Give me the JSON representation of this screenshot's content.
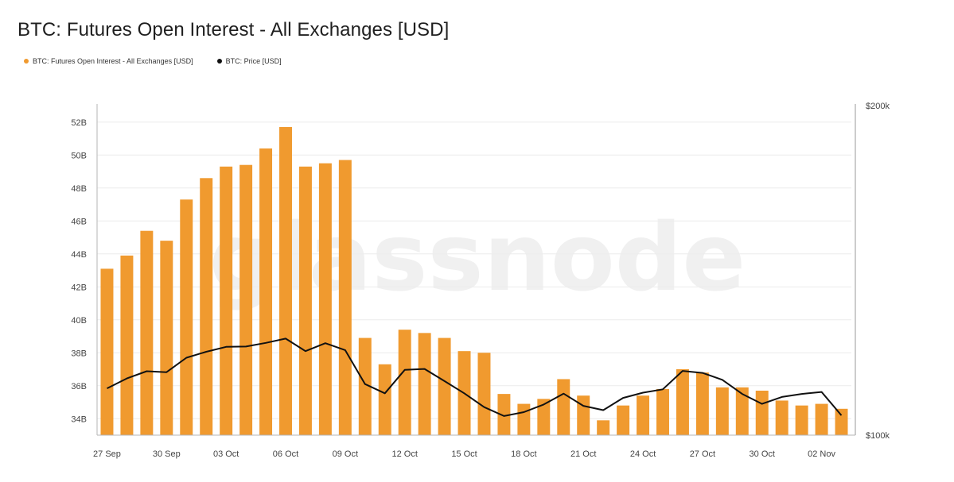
{
  "header": {
    "title": "BTC: Futures Open Interest - All Exchanges [USD]"
  },
  "legend": [
    {
      "label": "BTC: Futures Open Interest - All Exchanges [USD]",
      "color": "#f09a2f"
    },
    {
      "label": "BTC: Price [USD]",
      "color": "#111111"
    }
  ],
  "watermark": "glassnode",
  "chart_data": {
    "type": "bar",
    "title": "BTC: Futures Open Interest - All Exchanges [USD]",
    "xlabel": "",
    "ylabel": "",
    "x_ticks": [
      "27 Sep",
      "30 Sep",
      "03 Oct",
      "06 Oct",
      "09 Oct",
      "12 Oct",
      "15 Oct",
      "18 Oct",
      "21 Oct",
      "24 Oct",
      "27 Oct",
      "30 Oct",
      "02 Nov"
    ],
    "y_left": {
      "min": 33,
      "max": 53,
      "ticks": [
        34,
        36,
        38,
        40,
        42,
        44,
        46,
        48,
        50,
        52
      ],
      "tick_labels": [
        "34B",
        "36B",
        "38B",
        "40B",
        "42B",
        "44B",
        "46B",
        "48B",
        "50B",
        "52B"
      ]
    },
    "y_right": {
      "min": 100,
      "max": 200,
      "tick_labels": [
        "$100k",
        "$200k"
      ]
    },
    "categories": [
      "27 Sep",
      "28 Sep",
      "29 Sep",
      "30 Sep",
      "01 Oct",
      "02 Oct",
      "03 Oct",
      "04 Oct",
      "05 Oct",
      "06 Oct",
      "07 Oct",
      "08 Oct",
      "09 Oct",
      "10 Oct",
      "11 Oct",
      "12 Oct",
      "13 Oct",
      "14 Oct",
      "15 Oct",
      "16 Oct",
      "17 Oct",
      "18 Oct",
      "19 Oct",
      "20 Oct",
      "21 Oct",
      "22 Oct",
      "23 Oct",
      "24 Oct",
      "25 Oct",
      "26 Oct",
      "27 Oct",
      "28 Oct",
      "29 Oct",
      "30 Oct",
      "31 Oct",
      "01 Nov",
      "02 Nov",
      "03 Nov"
    ],
    "series": [
      {
        "name": "BTC: Futures Open Interest - All Exchanges [USD]",
        "type": "bar",
        "axis": "left",
        "unit": "B",
        "color": "#f09a2f",
        "values": [
          43.1,
          43.9,
          45.4,
          44.8,
          47.3,
          48.6,
          49.3,
          49.4,
          50.4,
          51.7,
          49.3,
          49.5,
          49.7,
          38.9,
          37.3,
          39.4,
          39.2,
          38.9,
          38.1,
          38.0,
          35.5,
          34.9,
          35.2,
          36.4,
          35.4,
          33.9,
          34.8,
          35.4,
          35.8,
          37.0,
          36.8,
          35.9,
          35.9,
          35.7,
          35.1,
          34.8,
          34.9,
          34.6
        ]
      },
      {
        "name": "BTC: Price [USD]",
        "type": "line",
        "axis": "right",
        "unit": "k",
        "color": "#111111",
        "values": [
          114.2,
          117.2,
          119.4,
          119.1,
          123.5,
          125.3,
          126.8,
          126.9,
          128.0,
          129.3,
          125.5,
          127.9,
          125.8,
          115.5,
          112.7,
          119.8,
          120.1,
          116.4,
          112.7,
          108.5,
          105.8,
          107.0,
          109.3,
          112.6,
          108.9,
          107.6,
          111.3,
          112.9,
          113.9,
          119.5,
          118.9,
          116.8,
          112.5,
          109.5,
          111.6,
          112.5,
          113.1,
          106.0
        ]
      }
    ]
  }
}
